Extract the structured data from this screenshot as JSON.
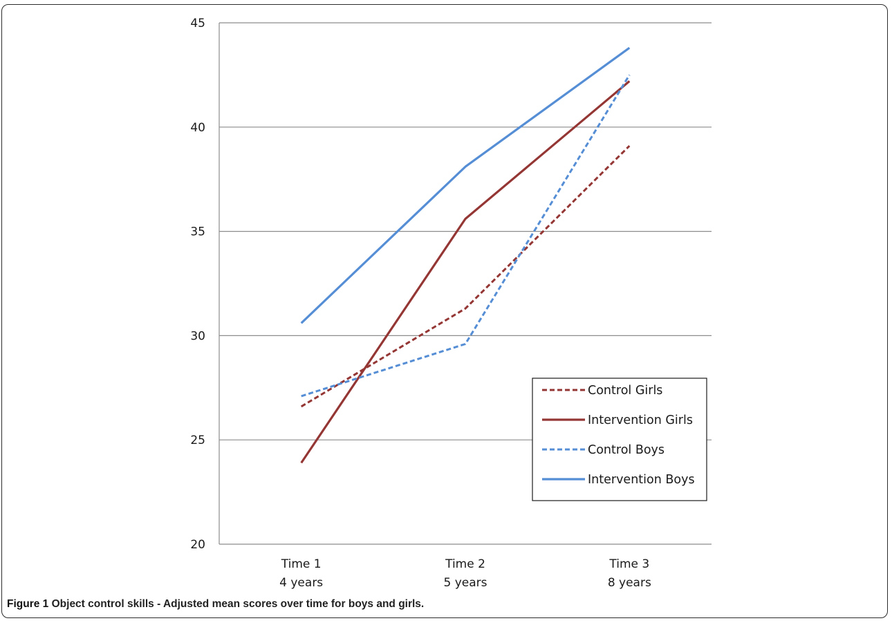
{
  "chart_data": {
    "type": "line",
    "categories": [
      [
        "Time 1",
        "4 years"
      ],
      [
        "Time 2",
        "5 years"
      ],
      [
        "Time 3",
        "8 years"
      ]
    ],
    "ylim": [
      20,
      45
    ],
    "yticks": [
      20,
      25,
      30,
      35,
      40,
      45
    ],
    "grid": true,
    "legend_position": "lower-right",
    "series": [
      {
        "name": "Control Girls",
        "values": [
          26.6,
          31.3,
          39.1
        ],
        "color": "#943634",
        "dashed": true
      },
      {
        "name": "Intervention Girls",
        "values": [
          23.9,
          35.6,
          42.2
        ],
        "color": "#943634",
        "dashed": false
      },
      {
        "name": "Control Boys",
        "values": [
          27.1,
          29.6,
          42.5
        ],
        "color": "#558ED5",
        "dashed": true
      },
      {
        "name": "Intervention Boys",
        "values": [
          30.6,
          38.1,
          43.8
        ],
        "color": "#558ED5",
        "dashed": false
      }
    ]
  },
  "caption": {
    "label": "Figure 1",
    "text": "Object control skills - Adjusted mean scores over time for boys and girls."
  }
}
